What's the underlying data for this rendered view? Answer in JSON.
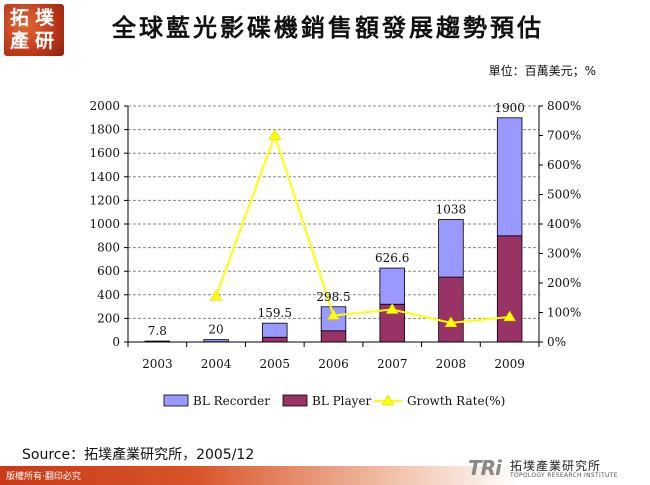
{
  "logo": {
    "chars": [
      "拓",
      "墣",
      "產",
      "研"
    ]
  },
  "title": "全球藍光影碟機銷售額發展趨勢預估",
  "unit": "單位：百萬美元；%",
  "source": "Source：拓墣產業研究所，2005/12",
  "copyright": "版權所有‧翻印必究",
  "brand": {
    "tri": "TRi",
    "name_zh": "拓墣產業研究所",
    "name_en": "TOPOLOGY RESEARCH INSTITUTE"
  },
  "chart_data": {
    "type": "bar",
    "stacked": true,
    "categories": [
      "2003",
      "2004",
      "2005",
      "2006",
      "2007",
      "2008",
      "2009"
    ],
    "series": [
      {
        "name": "BL Player",
        "values": [
          1.3,
          2,
          40,
          95,
          320,
          550,
          900
        ],
        "color": "#993366"
      },
      {
        "name": "BL Recorder",
        "values": [
          6.5,
          18,
          119.5,
          203.5,
          306.6,
          488,
          1000
        ],
        "color": "#9999ff"
      }
    ],
    "totals": [
      7.8,
      20,
      159.5,
      298.5,
      626.6,
      1038,
      1900
    ],
    "total_labels": [
      "7.8",
      "20",
      "159.5",
      "298.5",
      "626.6",
      "1038",
      "1900"
    ],
    "line": {
      "name": "Growth Rate(%)",
      "color": "#ffff00",
      "x": [
        "2004",
        "2005",
        "2006",
        "2007",
        "2008",
        "2009"
      ],
      "values": [
        155,
        700,
        90,
        110,
        65,
        85
      ]
    },
    "legend": [
      "BL Recorder",
      "BL Player",
      "Growth Rate(%)"
    ],
    "y_left": {
      "min": 0,
      "max": 2000,
      "step": 200,
      "ticks": [
        "0",
        "200",
        "400",
        "600",
        "800",
        "1000",
        "1200",
        "1400",
        "1600",
        "1800",
        "2000"
      ]
    },
    "y_right": {
      "min": 0,
      "max": 800,
      "step": 100,
      "ticks": [
        "0%",
        "100%",
        "200%",
        "300%",
        "400%",
        "500%",
        "600%",
        "700%",
        "800%"
      ]
    },
    "grid": true,
    "legend_position": "bottom"
  }
}
